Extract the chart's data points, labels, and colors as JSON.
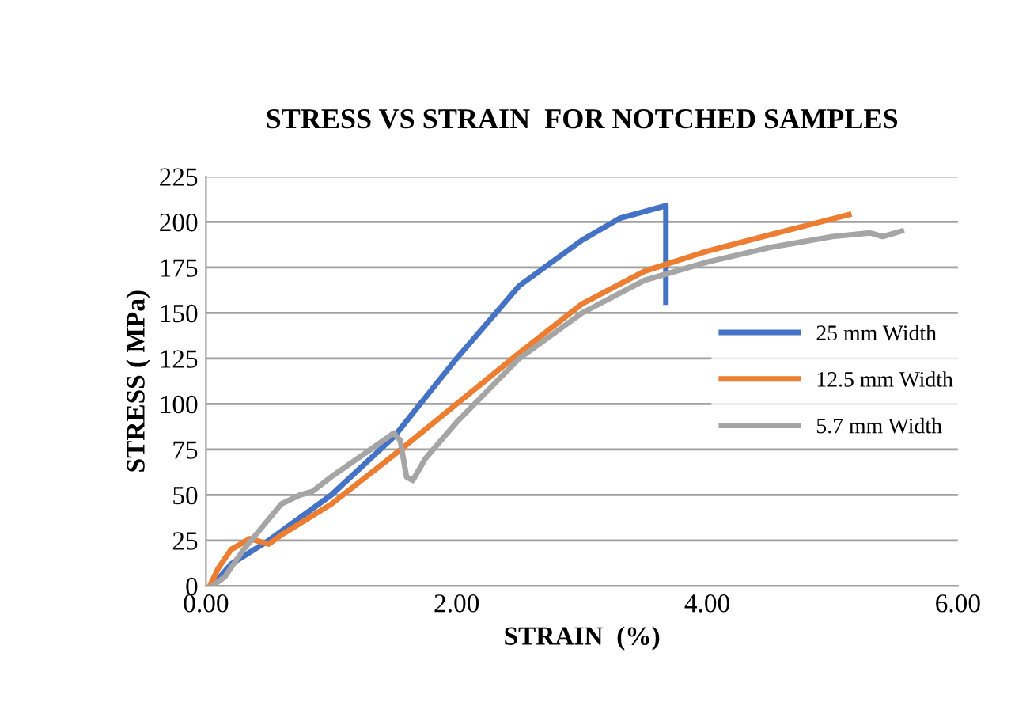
{
  "chart_data": {
    "type": "line",
    "title": "STRESS VS STRAIN  FOR NOTCHED SAMPLES",
    "xlabel": "STRAIN  (%)",
    "ylabel": "STRESS ( MPa)",
    "xlim": [
      0,
      6
    ],
    "xticks": [
      {
        "value": 0,
        "label": "0.00"
      },
      {
        "value": 2,
        "label": "2.00"
      },
      {
        "value": 4,
        "label": "4.00"
      },
      {
        "value": 6,
        "label": "6.00"
      }
    ],
    "ylim": [
      0,
      225
    ],
    "yticks": [
      0,
      25,
      50,
      75,
      100,
      125,
      150,
      175,
      200,
      225
    ],
    "grid": "y",
    "legend": "right",
    "marker": "none",
    "line_style": "solid",
    "series": [
      {
        "name": "25 mm Width",
        "color": "#4472c4",
        "x": [
          0.05,
          0.2,
          0.5,
          1.0,
          1.5,
          2.0,
          2.5,
          3.0,
          3.3,
          3.67,
          3.67
        ],
        "values": [
          0,
          12,
          25,
          50,
          82,
          125,
          165,
          190,
          202,
          209,
          156
        ]
      },
      {
        "name": "12.5 mm Width",
        "color": "#ed7d31",
        "x": [
          0.03,
          0.1,
          0.2,
          0.35,
          0.5,
          0.6,
          1.0,
          1.5,
          2.0,
          2.5,
          3.0,
          3.5,
          4.0,
          4.5,
          5.13
        ],
        "values": [
          0,
          10,
          20,
          26,
          23,
          28,
          45,
          72,
          100,
          128,
          155,
          173,
          184,
          193,
          204
        ]
      },
      {
        "name": "5.7 mm Width",
        "color": "#a5a5a5",
        "x": [
          0.05,
          0.15,
          0.3,
          0.6,
          0.75,
          0.85,
          1.0,
          1.25,
          1.5,
          1.55,
          1.6,
          1.65,
          1.75,
          2.0,
          2.5,
          3.0,
          3.5,
          4.0,
          4.5,
          5.0,
          5.3,
          5.4,
          5.55
        ],
        "values": [
          0,
          5,
          20,
          45,
          50,
          52,
          60,
          72,
          84,
          80,
          60,
          58,
          70,
          90,
          125,
          150,
          168,
          178,
          186,
          192,
          194,
          192,
          195
        ]
      }
    ]
  }
}
